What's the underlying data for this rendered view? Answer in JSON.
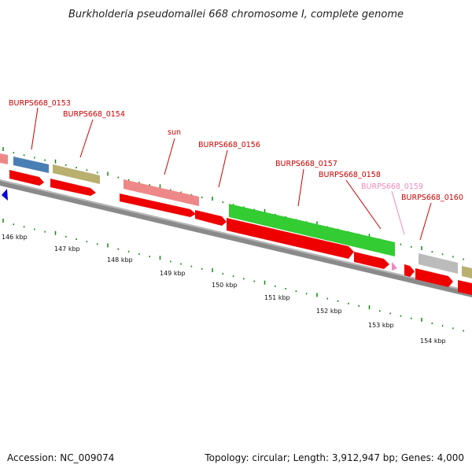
{
  "title": "Burkholderia pseudomallei 668 chromosome I, complete genome",
  "accession_text": "Accession: NC_009074",
  "summary_text": "Topology: circular; Length: 3,912,947 bp; Genes: 4,000",
  "colors": {
    "backbone": "#8a8a8a",
    "strand_cds": "#ee0000",
    "tick": "#118811",
    "label_red": "#cc0000",
    "label_pink": "#ee88bb"
  },
  "kbp_ticks": [
    "146 kbp",
    "147 kbp",
    "148 kbp",
    "149 kbp",
    "150 kbp",
    "151 kbp",
    "152 kbp",
    "153 kbp",
    "154 kbp"
  ],
  "genes": [
    {
      "name": "BURPS668_0153",
      "color": "#4a7fb5"
    },
    {
      "name": "BURPS668_0154",
      "color": "#b9b070"
    },
    {
      "name": "sun",
      "color": "#ee8888"
    },
    {
      "name": "BURPS668_0156",
      "color": ""
    },
    {
      "name": "BURPS668_0157",
      "color": "#33cc33"
    },
    {
      "name": "BURPS668_0158",
      "color": ""
    },
    {
      "name": "BURPS668_0159",
      "color": "#ee88bb"
    },
    {
      "name": "BURPS668_0160",
      "color": "#bbbbbb"
    }
  ]
}
